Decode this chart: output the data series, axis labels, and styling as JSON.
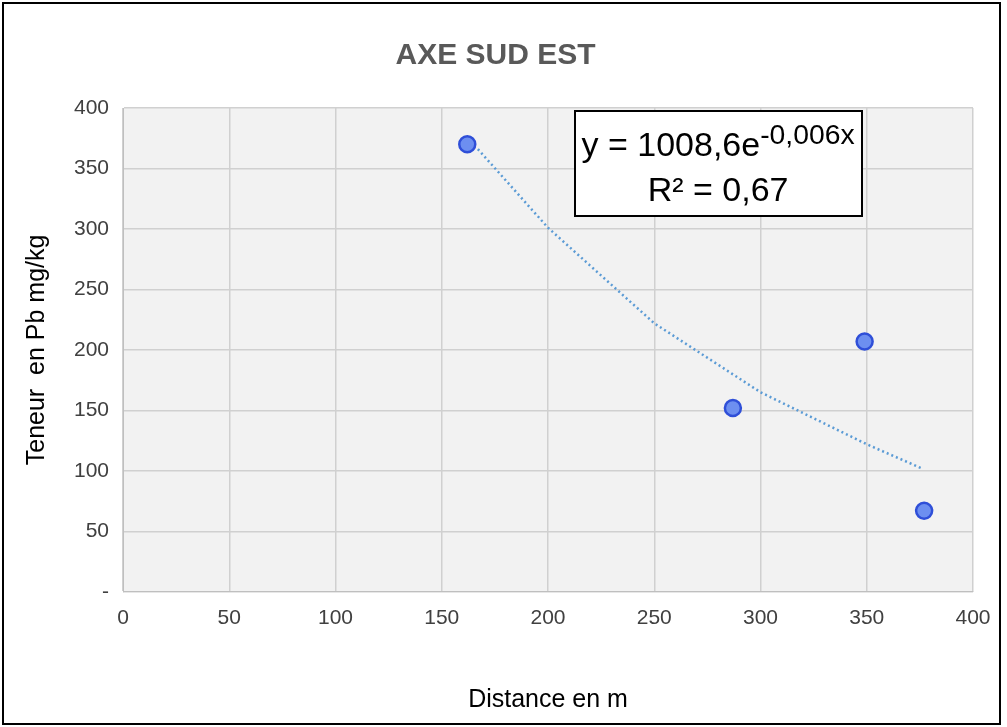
{
  "chart_data": {
    "type": "scatter",
    "title": "AXE SUD EST",
    "xlabel": "Distance en m",
    "ylabel": "Teneur  en Pb mg/kg",
    "series": [
      {
        "color": "#6d8ff0",
        "x": [
          162,
          287,
          349,
          377
        ],
        "values": [
          370,
          152,
          207,
          67
        ]
      },
      {
        "type": "line",
        "color": "#5b9bd5",
        "line_style": "dotted",
        "marker": "none",
        "x": [
          167,
          200,
          250,
          300,
          350,
          376
        ],
        "values": [
          366,
          301,
          222,
          165,
          122,
          102
        ]
      }
    ],
    "xlim": [
      0,
      400
    ],
    "xticks": [
      0,
      50,
      100,
      150,
      200,
      250,
      300,
      350,
      400
    ],
    "ylim": [
      0,
      400
    ],
    "yticks": [
      {
        "value": 0,
        "label": "-"
      },
      50,
      100,
      150,
      200,
      250,
      300,
      350,
      400
    ],
    "grid": true,
    "marker": "circle",
    "annotations": [
      "y = 1008,6e$^{-0,006x}$\nR² = 0,67"
    ]
  }
}
